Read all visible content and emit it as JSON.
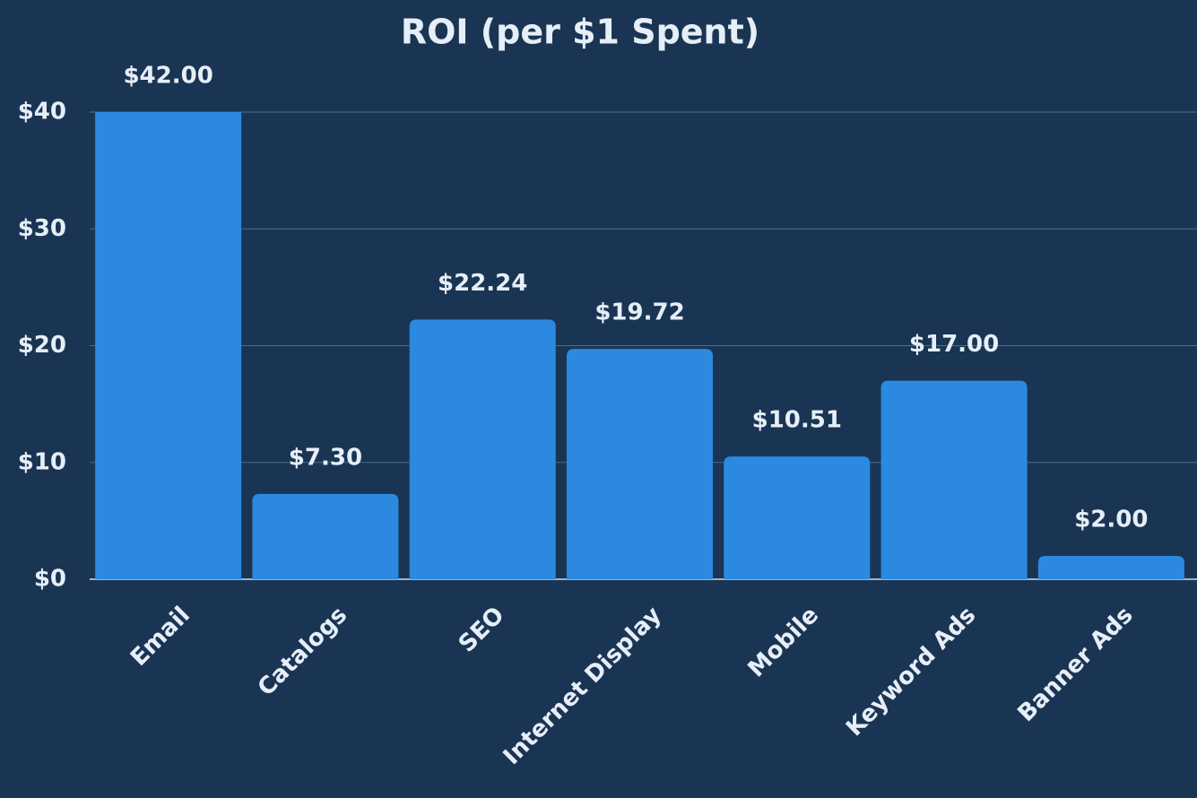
{
  "chart_data": {
    "type": "bar",
    "title": "ROI (per $1 Spent)",
    "categories": [
      "Email",
      "Catalogs",
      "SEO",
      "Internet Display",
      "Mobile",
      "Keyword Ads",
      "Banner Ads"
    ],
    "values": [
      42,
      7.3,
      22.24,
      19.72,
      10.51,
      17,
      2
    ],
    "value_labels": [
      "$42.00",
      "$7.30",
      "$22.24",
      "$19.72",
      "$10.51",
      "$17.00",
      "$2.00"
    ],
    "color": "#2b8ae0",
    "ylim": [
      0,
      40
    ],
    "yticks": [
      {
        "value": 0,
        "label": "$0"
      },
      {
        "value": 10,
        "label": "$10"
      },
      {
        "value": 20,
        "label": "$20"
      },
      {
        "value": 30,
        "label": "$30"
      },
      {
        "value": 40,
        "label": "$40"
      }
    ],
    "grid": true
  }
}
